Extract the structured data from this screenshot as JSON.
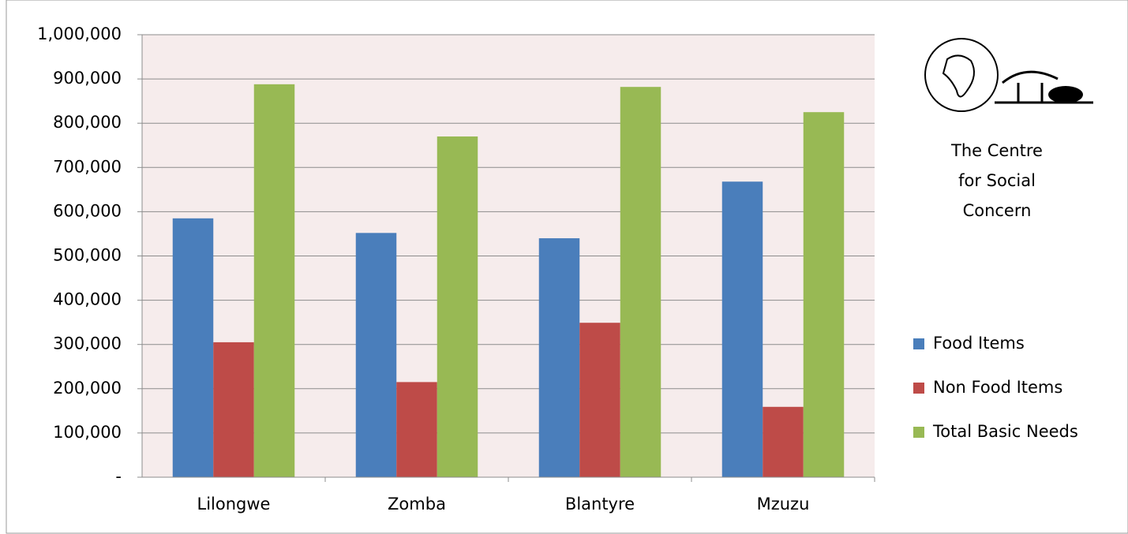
{
  "chart_data": {
    "type": "bar",
    "categories": [
      "Lilongwe",
      "Zomba",
      "Blantyre",
      "Mzuzu"
    ],
    "series": [
      {
        "name": "Food Items",
        "color": "#4a7ebb",
        "values": [
          585000,
          552000,
          540000,
          668000
        ]
      },
      {
        "name": "Non Food Items",
        "color": "#be4b48",
        "values": [
          305000,
          215000,
          349000,
          159000
        ]
      },
      {
        "name": "Total Basic Needs",
        "color": "#98b954",
        "values": [
          888000,
          770000,
          882000,
          825000
        ]
      }
    ],
    "ylim": [
      0,
      1000000
    ],
    "yticks": [
      {
        "value": 0,
        "label": "-"
      },
      {
        "value": 100000,
        "label": "100,000"
      },
      {
        "value": 200000,
        "label": "200,000"
      },
      {
        "value": 300000,
        "label": "300,000"
      },
      {
        "value": 400000,
        "label": "400,000"
      },
      {
        "value": 500000,
        "label": "500,000"
      },
      {
        "value": 600000,
        "label": "600,000"
      },
      {
        "value": 700000,
        "label": "700,000"
      },
      {
        "value": 800000,
        "label": "800,000"
      },
      {
        "value": 900000,
        "label": "900,000"
      },
      {
        "value": 1000000,
        "label": "1,000,000"
      }
    ],
    "grid": true,
    "legend": "right",
    "logo_text": [
      "The Centre",
      "for Social",
      "Concern"
    ]
  }
}
